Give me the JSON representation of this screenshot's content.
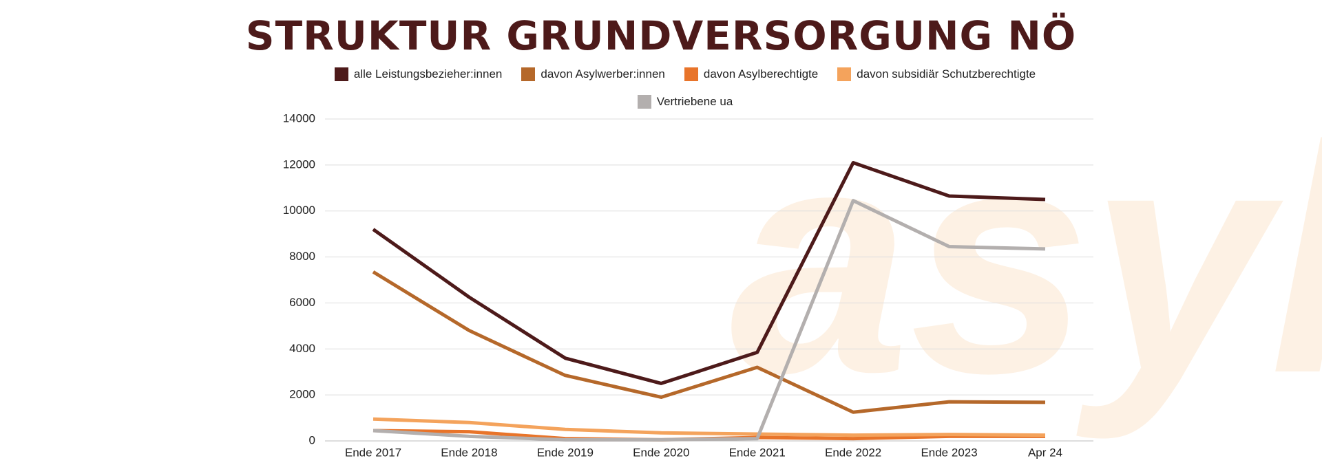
{
  "chart_data": {
    "type": "line",
    "title": "STRUKTUR GRUNDVERSORGUNG NÖ",
    "watermark": "asyl",
    "categories": [
      "Ende 2017",
      "Ende 2018",
      "Ende 2019",
      "Ende 2020",
      "Ende 2021",
      "Ende 2022",
      "Ende 2023",
      "Apr 24"
    ],
    "series": [
      {
        "name": "alle Leistungsbezieher:innen",
        "color": "#4d1a1a",
        "values": [
          9200,
          6250,
          3600,
          2500,
          3850,
          12100,
          10650,
          10500
        ]
      },
      {
        "name": "davon Asylwerber:innen",
        "color": "#b5682a",
        "values": [
          7350,
          4800,
          2850,
          1900,
          3200,
          1250,
          1700,
          1680
        ]
      },
      {
        "name": "davon Asylberechtigte",
        "color": "#e8742a",
        "values": [
          450,
          400,
          100,
          50,
          150,
          100,
          200,
          200
        ]
      },
      {
        "name": "davon subsidiär Schutzberechtigte",
        "color": "#f4a35c",
        "values": [
          950,
          800,
          500,
          350,
          300,
          250,
          280,
          250
        ]
      },
      {
        "name": "Vertriebene ua",
        "color": "#b3afae",
        "values": [
          450,
          200,
          50,
          50,
          100,
          10450,
          8450,
          8350
        ]
      }
    ],
    "ylim": [
      0,
      14000
    ],
    "yticks": [
      0,
      2000,
      4000,
      6000,
      8000,
      10000,
      12000,
      14000
    ],
    "grid": true
  }
}
